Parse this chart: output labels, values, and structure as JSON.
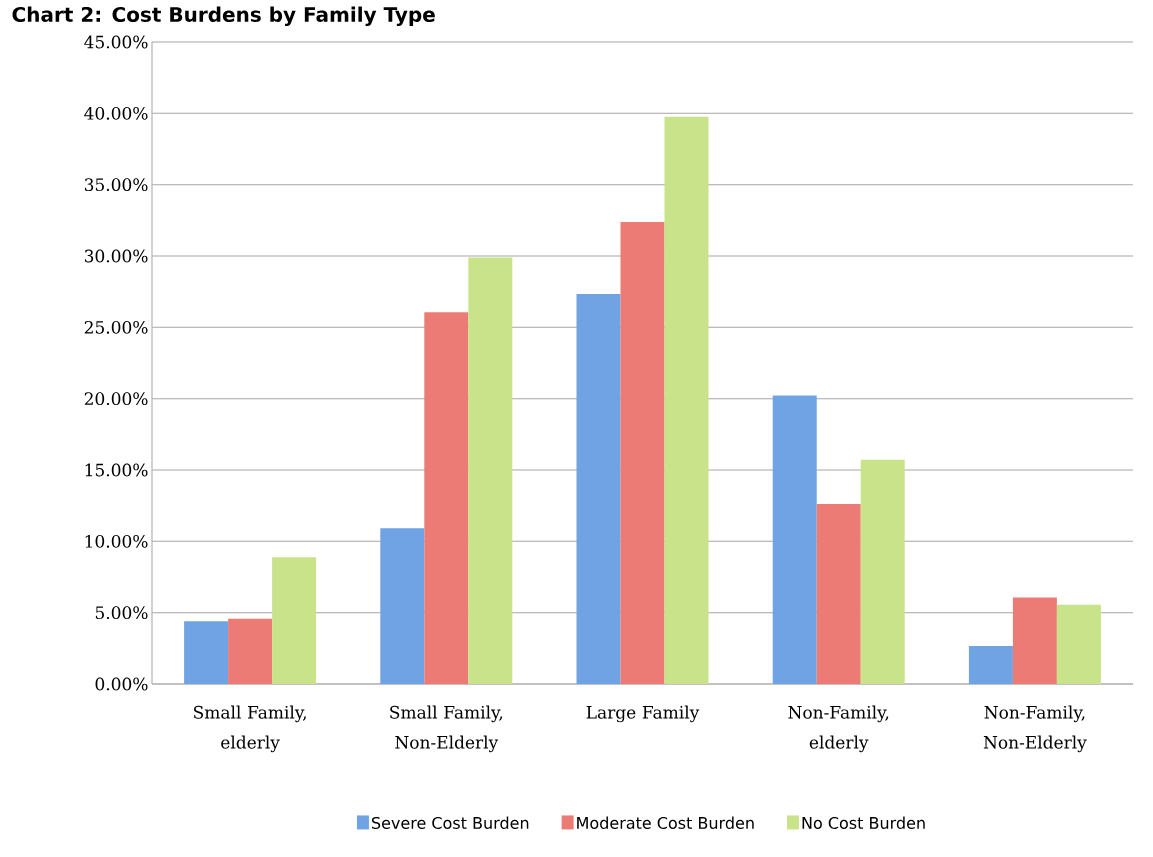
{
  "chart_data": {
    "type": "bar",
    "title": "Chart 2: Cost Burdens by Family Type",
    "categories": [
      "Small Family, elderly",
      "Small Family, Non-Elderly",
      "Large Family",
      "Non-Family, elderly",
      "Non-Family, Non-Elderly"
    ],
    "series": [
      {
        "name": "Severe Cost Burden",
        "color": "#6fa3e3",
        "values": [
          4.39,
          10.92,
          27.33,
          20.22,
          2.67
        ]
      },
      {
        "name": "Moderate Cost Burden",
        "color": "#eb7b74",
        "values": [
          4.58,
          26.06,
          32.39,
          12.61,
          6.06
        ]
      },
      {
        "name": "No Cost Burden",
        "color": "#c8e38a",
        "values": [
          8.89,
          29.89,
          39.78,
          15.72,
          5.56
        ]
      }
    ],
    "ylim": [
      0,
      45
    ],
    "yticks": [
      {
        "value": 0,
        "label": "0.00%"
      },
      {
        "value": 5,
        "label": "5.00%"
      },
      {
        "value": 10,
        "label": "10.00%"
      },
      {
        "value": 15,
        "label": "15.00%"
      },
      {
        "value": 20,
        "label": "20.00%"
      },
      {
        "value": 25,
        "label": "25.00%"
      },
      {
        "value": 30,
        "label": "30.00%"
      },
      {
        "value": 35,
        "label": "35.00%"
      },
      {
        "value": 40,
        "label": "40.00%"
      },
      {
        "value": 45,
        "label": "45.00%"
      }
    ],
    "grid": "y",
    "legend": "bottom"
  }
}
